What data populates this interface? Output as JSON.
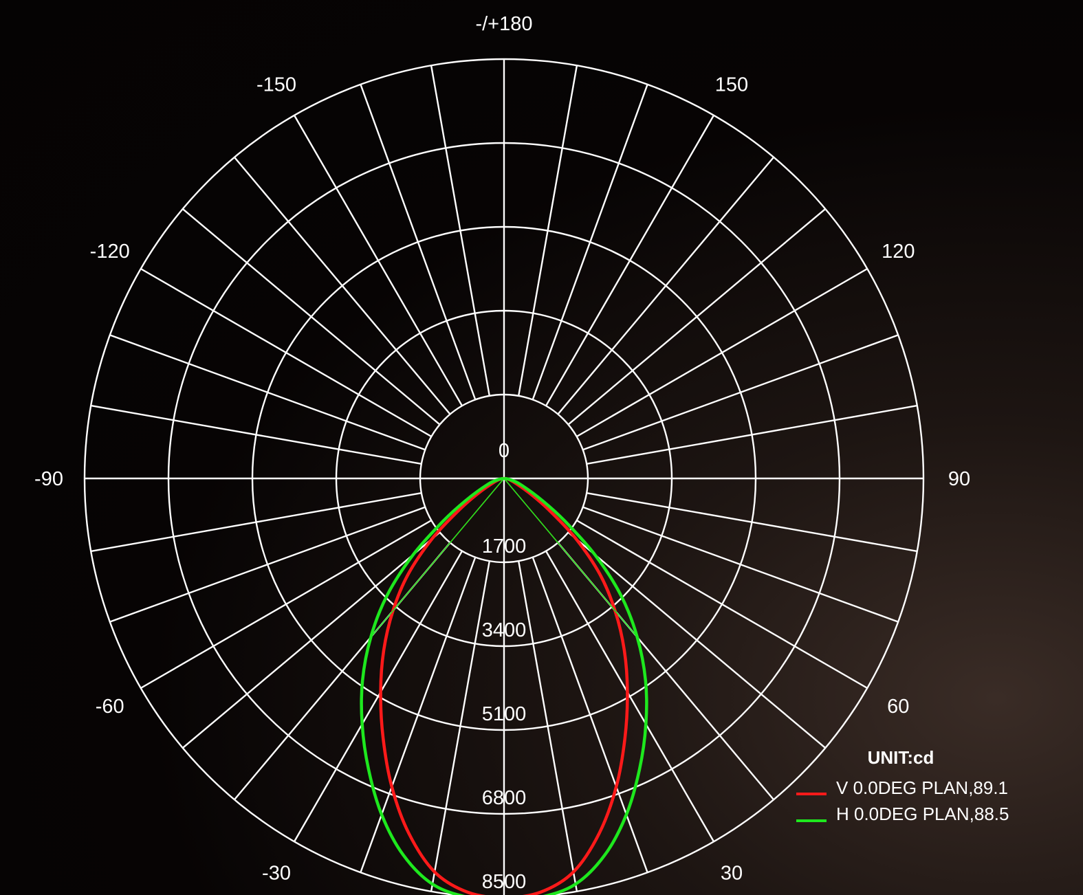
{
  "chart_data": {
    "type": "polar",
    "unit_label": "UNIT:cd",
    "angle_labels": [
      "-/+180",
      "150",
      "120",
      "90",
      "60",
      "30",
      "-30",
      "-60",
      "-90",
      "-120",
      "-150"
    ],
    "angle_values": [
      180,
      150,
      120,
      90,
      60,
      30,
      -30,
      -60,
      -90,
      -120,
      -150
    ],
    "center_label": "0",
    "radial_ticks": [
      1700,
      3400,
      5100,
      6800,
      8500
    ],
    "radial_tick_labels": [
      "1700",
      "3400",
      "5100",
      "6800",
      "8500"
    ],
    "rmax": 8500,
    "spoke_step_deg": 10,
    "grid": true,
    "legend_position": "bottom-right",
    "series": [
      {
        "name": "V 0.0DEG PLAN,89.1",
        "color": "#ff1a1a",
        "angles": [
          -90,
          -80,
          -70,
          -60,
          -55,
          -50,
          -45,
          -40,
          -35,
          -30,
          -25,
          -20,
          -15,
          -10,
          -5,
          0,
          5,
          10,
          15,
          20,
          25,
          30,
          35,
          40,
          45,
          50,
          55,
          60,
          70,
          80,
          90
        ],
        "values": [
          0,
          60,
          200,
          600,
          1100,
          1900,
          2750,
          3500,
          4250,
          5000,
          5800,
          6650,
          7450,
          8100,
          8420,
          8500,
          8420,
          8100,
          7450,
          6650,
          5800,
          5000,
          4250,
          3500,
          2750,
          1900,
          1100,
          600,
          200,
          60,
          0
        ]
      },
      {
        "name": "H 0.0DEG PLAN,88.5",
        "color": "#1ee81e",
        "angles": [
          -90,
          -80,
          -70,
          -60,
          -55,
          -50,
          -45,
          -40,
          -35,
          -30,
          -25,
          -20,
          -15,
          -10,
          -5,
          0,
          5,
          10,
          15,
          20,
          25,
          30,
          35,
          40,
          45,
          50,
          55,
          60,
          70,
          80,
          90
        ],
        "values": [
          0,
          100,
          350,
          900,
          1500,
          2400,
          3350,
          4200,
          5000,
          5750,
          6500,
          7250,
          7900,
          8350,
          8520,
          8550,
          8520,
          8350,
          7900,
          7250,
          6500,
          5750,
          5000,
          4200,
          3350,
          2400,
          1500,
          900,
          350,
          100,
          0
        ]
      }
    ]
  }
}
